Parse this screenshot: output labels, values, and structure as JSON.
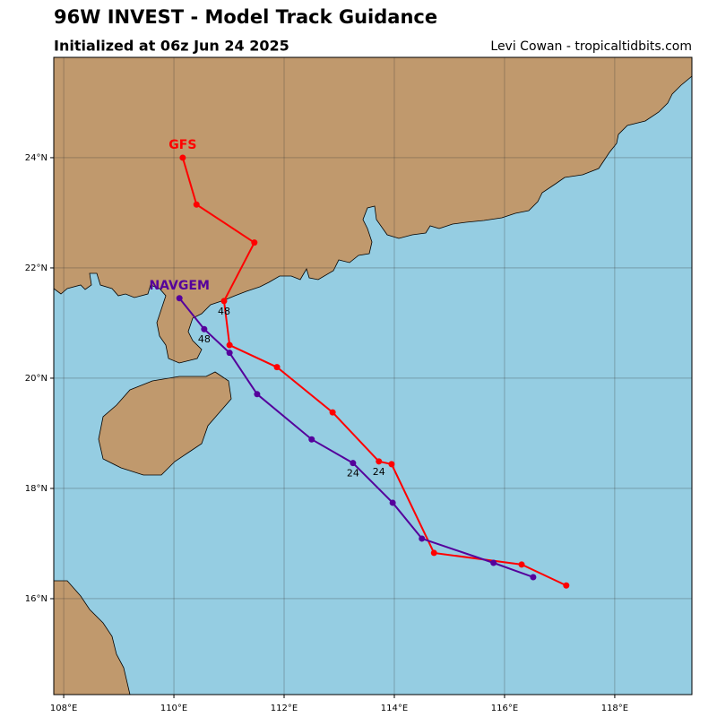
{
  "chart_data": {
    "type": "track-map",
    "title": "96W INVEST - Model Track Guidance",
    "subtitle": "Initialized at 06z Jun 24 2025",
    "credit": "Levi Cowan - tropicaltidbits.com",
    "xlim": [
      107.82,
      119.4
    ],
    "ylim": [
      14.26,
      25.82
    ],
    "xticks": [
      {
        "value": 108,
        "label": "108°E"
      },
      {
        "value": 110,
        "label": "110°E"
      },
      {
        "value": 112,
        "label": "112°E"
      },
      {
        "value": 114,
        "label": "114°E"
      },
      {
        "value": 116,
        "label": "116°E"
      },
      {
        "value": 118,
        "label": "118°E"
      }
    ],
    "yticks": [
      {
        "value": 16,
        "label": "16°N"
      },
      {
        "value": 18,
        "label": "18°N"
      },
      {
        "value": 20,
        "label": "20°N"
      },
      {
        "value": 22,
        "label": "22°N"
      },
      {
        "value": 24,
        "label": "24°N"
      }
    ],
    "grid": true,
    "series": [
      {
        "name": "GFS",
        "color": "#ff0000",
        "x": [
          117.12,
          116.31,
          114.72,
          113.95,
          113.72,
          112.88,
          111.87,
          111.01,
          110.91,
          111.46,
          110.41,
          110.16
        ],
        "values": [
          16.24,
          16.62,
          16.83,
          18.44,
          18.49,
          19.38,
          20.2,
          20.6,
          21.4,
          22.46,
          23.15,
          24.0
        ],
        "value_labels": [
          null,
          null,
          null,
          null,
          "24",
          null,
          null,
          null,
          "48",
          null,
          null,
          null
        ]
      },
      {
        "name": "NAVGEM",
        "color": "#55009c",
        "x": [
          116.52,
          115.8,
          114.5,
          113.97,
          113.25,
          112.5,
          111.51,
          111.01,
          110.55,
          110.1
        ],
        "values": [
          16.39,
          16.65,
          17.09,
          17.74,
          18.46,
          18.89,
          19.71,
          20.46,
          20.89,
          21.45
        ],
        "value_labels": [
          null,
          null,
          null,
          null,
          "24",
          null,
          null,
          null,
          "48",
          null
        ]
      }
    ]
  }
}
